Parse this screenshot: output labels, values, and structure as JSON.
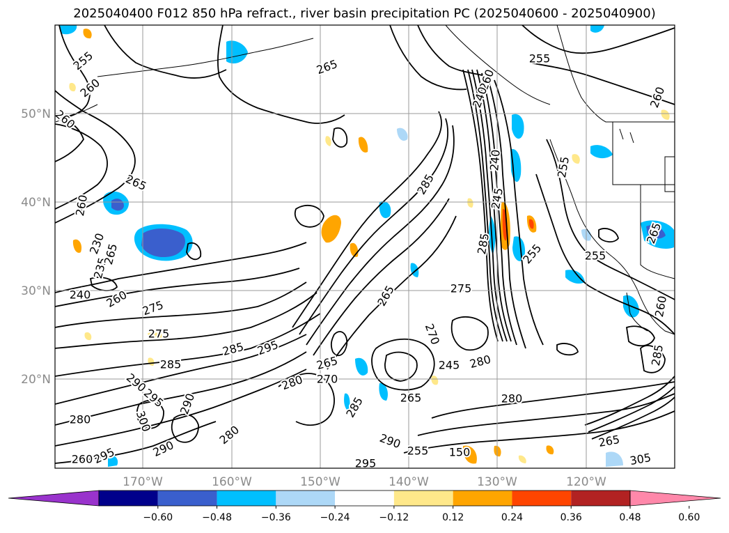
{
  "title": "2025040400 F012 850 hPa refract., river basin precipitation PC (2025040600 - 2025040900)",
  "map": {
    "lat_labels": [
      "50°N",
      "40°N",
      "30°N",
      "20°N"
    ],
    "lon_labels": [
      "170°W",
      "160°W",
      "150°W",
      "140°W",
      "130°W",
      "120°W"
    ],
    "gridlines": true,
    "contour_color": "#000000"
  },
  "contour_labels": [
    "255",
    "255",
    "260",
    "260",
    "260",
    "265",
    "265",
    "255",
    "240",
    "285",
    "285",
    "245",
    "230",
    "235",
    "265",
    "240",
    "260",
    "275",
    "275",
    "285",
    "275",
    "295",
    "270",
    "265",
    "265",
    "270",
    "285",
    "280",
    "280",
    "290",
    "295",
    "290",
    "280",
    "300",
    "290",
    "295",
    "280",
    "285",
    "290",
    "295",
    "305",
    "260",
    "255",
    "265",
    "265",
    "280",
    "150",
    "255",
    "265",
    "260",
    "260",
    "240",
    "285",
    "255",
    "245",
    "260"
  ],
  "colorbar": {
    "ticks": [
      "−0.60",
      "−0.48",
      "−0.36",
      "−0.24",
      "−0.12",
      "0.12",
      "0.24",
      "0.36",
      "0.48",
      "0.60"
    ],
    "colors": [
      "#9933cc",
      "#00008b",
      "#3a5fcd",
      "#00bfff",
      "#add8f7",
      "#ffffff",
      "#ffe88a",
      "#ffa500",
      "#ff4500",
      "#b22222",
      "#ff88aa"
    ],
    "extend": "both"
  }
}
